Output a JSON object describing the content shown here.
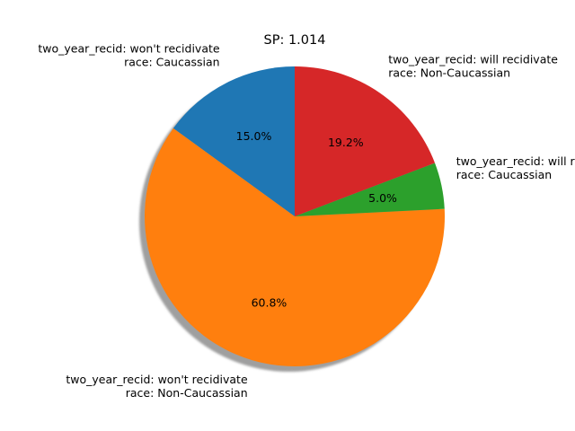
{
  "chart_data": {
    "type": "pie",
    "title": "SP: 1.014",
    "start_angle_deg": 90,
    "direction": "counterclockwise",
    "shadow": true,
    "slices": [
      {
        "label_lines": [
          "two_year_recid: won't recidivate",
          "race: Caucassian"
        ],
        "value": 15.0,
        "pct_label": "15.0%",
        "color": "#1f77b4"
      },
      {
        "label_lines": [
          "two_year_recid: won't recidivate",
          "race: Non-Caucassian"
        ],
        "value": 60.8,
        "pct_label": "60.8%",
        "color": "#ff7f0e"
      },
      {
        "label_lines": [
          "two_year_recid: will recidivate",
          "race: Caucassian"
        ],
        "value": 5.0,
        "pct_label": "5.0%",
        "color": "#2ca02c"
      },
      {
        "label_lines": [
          "two_year_recid: will recidivate",
          "race: Non-Caucassian"
        ],
        "value": 19.2,
        "pct_label": "19.2%",
        "color": "#d62728"
      }
    ]
  }
}
